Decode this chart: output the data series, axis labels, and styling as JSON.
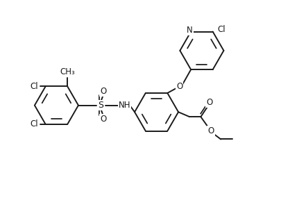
{
  "bg_color": "#ffffff",
  "line_color": "#1a1a1a",
  "line_width": 1.4,
  "font_size": 8.5,
  "fig_width": 4.05,
  "fig_height": 3.11,
  "dpi": 100,
  "xlim": [
    0,
    10.5
  ],
  "ylim": [
    0,
    8.0
  ]
}
